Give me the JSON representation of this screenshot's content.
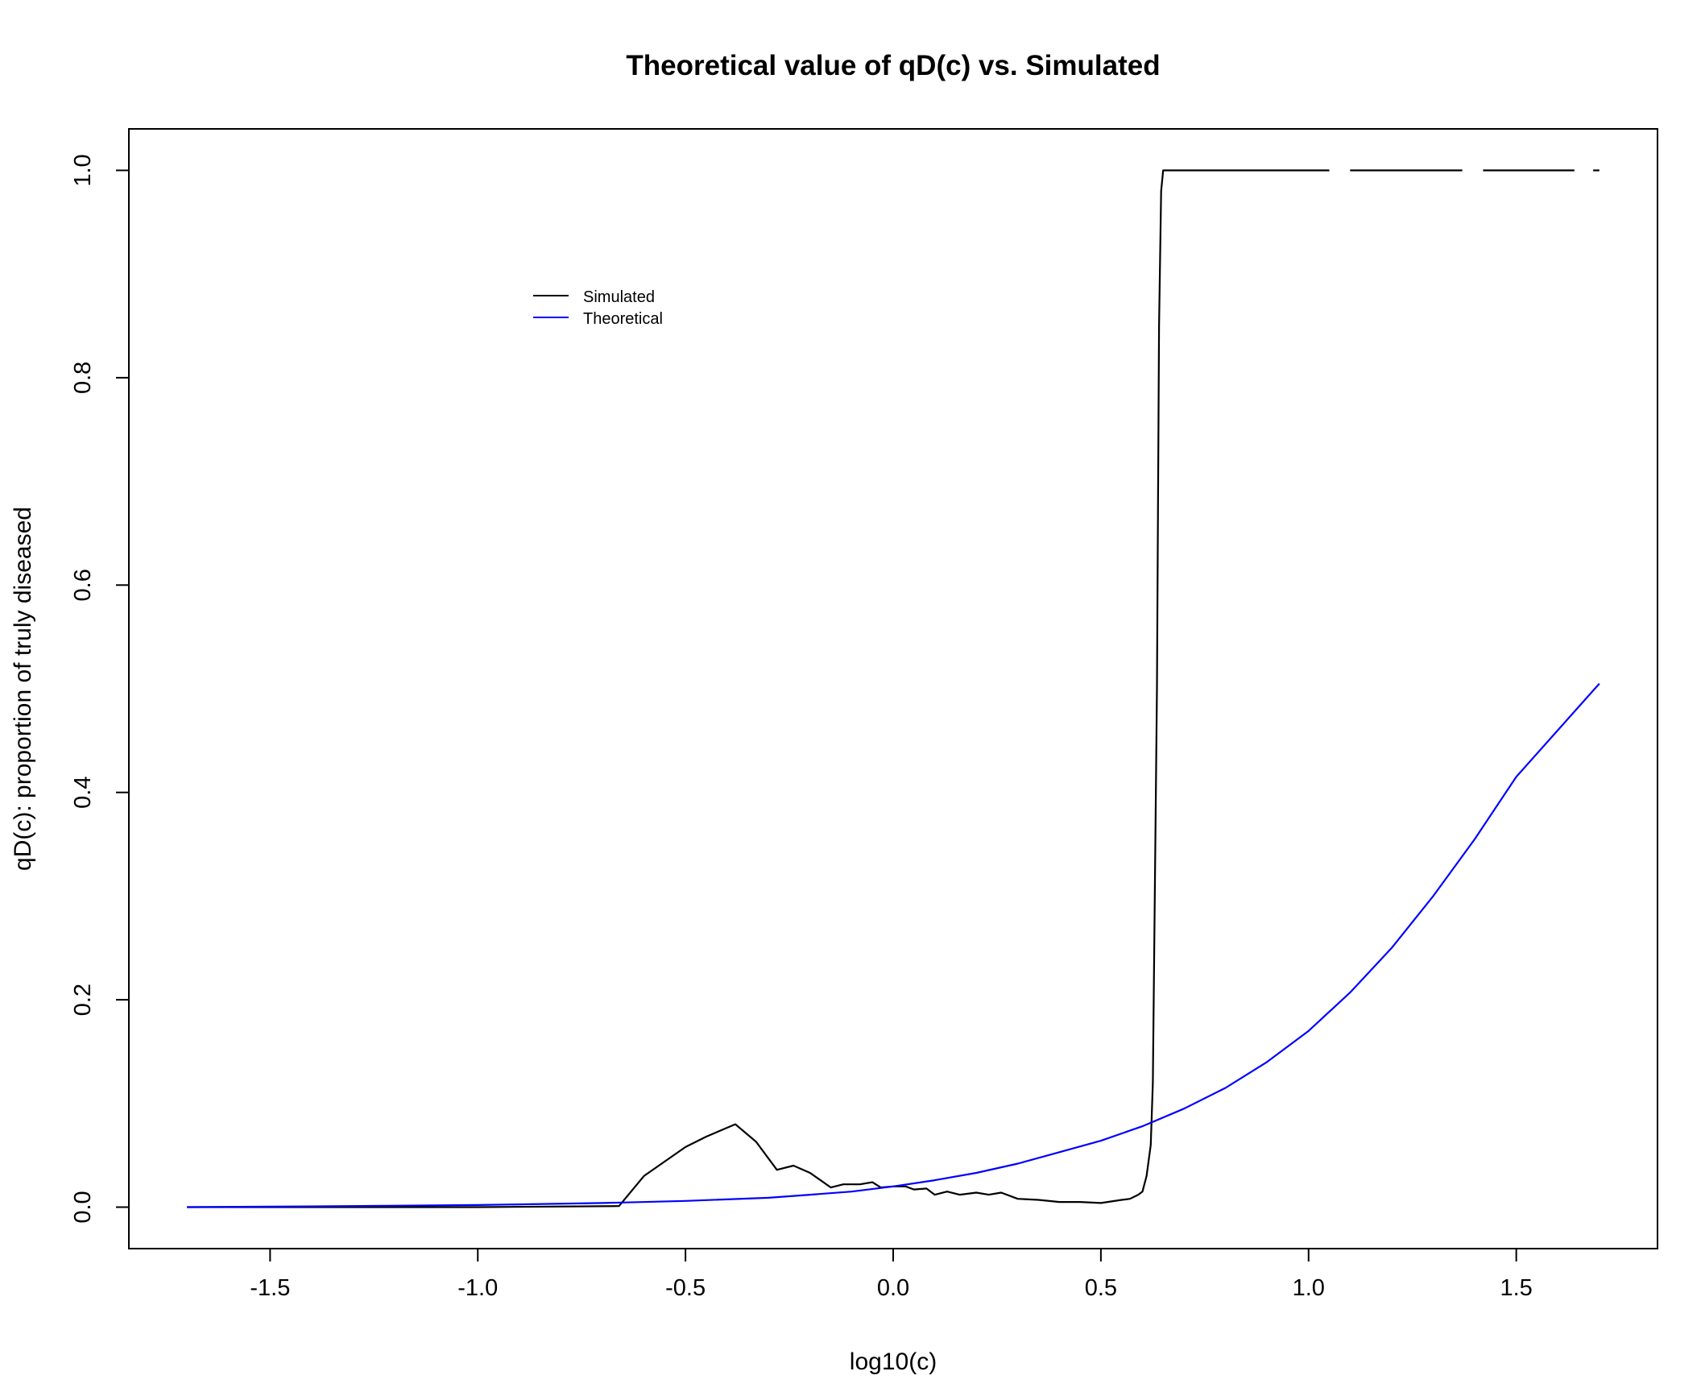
{
  "chart_data": {
    "type": "line",
    "title": "Theoretical value of qD(c) vs. Simulated",
    "xlabel": "log10(c)",
    "ylabel": "qD(c): proportion of truly diseased",
    "xlim": [
      -1.84,
      1.84
    ],
    "ylim": [
      -0.04,
      1.04
    ],
    "x_ticks": [
      -1.5,
      -1.0,
      -0.5,
      0.0,
      0.5,
      1.0,
      1.5
    ],
    "x_tick_labels": [
      "-1.5",
      "-1.0",
      "-0.5",
      "0.0",
      "0.5",
      "1.0",
      "1.5"
    ],
    "y_ticks": [
      0.0,
      0.2,
      0.4,
      0.6,
      0.8,
      1.0
    ],
    "y_tick_labels": [
      "0.0",
      "0.2",
      "0.4",
      "0.6",
      "0.8",
      "1.0"
    ],
    "grid": false,
    "legend": {
      "placement": "top-left-inside",
      "entries": [
        "Simulated",
        "Theoretical"
      ]
    },
    "series": [
      {
        "name": "Simulated",
        "color": "#000000",
        "segments": [
          {
            "x": [
              -1.7,
              -1.0,
              -0.66,
              -0.6,
              -0.5,
              -0.45,
              -0.38,
              -0.33,
              -0.28,
              -0.24,
              -0.2,
              -0.15,
              -0.12,
              -0.08,
              -0.05,
              -0.03,
              0.0,
              0.03,
              0.05,
              0.08,
              0.1,
              0.13,
              0.16,
              0.2,
              0.23,
              0.26,
              0.3,
              0.35,
              0.4,
              0.45,
              0.5,
              0.55,
              0.57,
              0.59,
              0.6,
              0.61,
              0.62,
              0.625,
              0.635,
              0.64,
              0.645,
              0.65,
              0.7,
              1.05
            ],
            "y": [
              0.0,
              0.0,
              0.001,
              0.03,
              0.058,
              0.068,
              0.08,
              0.063,
              0.036,
              0.04,
              0.033,
              0.019,
              0.022,
              0.022,
              0.024,
              0.019,
              0.02,
              0.02,
              0.017,
              0.018,
              0.012,
              0.015,
              0.012,
              0.014,
              0.012,
              0.014,
              0.008,
              0.007,
              0.005,
              0.005,
              0.004,
              0.007,
              0.008,
              0.012,
              0.015,
              0.03,
              0.06,
              0.12,
              0.5,
              0.85,
              0.98,
              1.0,
              1.0,
              1.0
            ]
          },
          {
            "x": [
              1.1,
              1.37
            ],
            "y": [
              1.0,
              1.0
            ]
          },
          {
            "x": [
              1.42,
              1.64
            ],
            "y": [
              1.0,
              1.0
            ]
          },
          {
            "x": [
              1.685,
              1.7
            ],
            "y": [
              1.0,
              1.0
            ]
          }
        ]
      },
      {
        "name": "Theoretical",
        "color": "#0000ff",
        "segments": [
          {
            "x": [
              -1.7,
              -1.5,
              -1.0,
              -0.7,
              -0.5,
              -0.3,
              -0.2,
              -0.1,
              0.0,
              0.1,
              0.2,
              0.3,
              0.4,
              0.5,
              0.6,
              0.7,
              0.8,
              0.9,
              1.0,
              1.1,
              1.2,
              1.3,
              1.4,
              1.5,
              1.6,
              1.7
            ],
            "y": [
              0.0,
              0.0005,
              0.002,
              0.004,
              0.006,
              0.009,
              0.012,
              0.015,
              0.02,
              0.026,
              0.033,
              0.042,
              0.053,
              0.064,
              0.078,
              0.095,
              0.115,
              0.14,
              0.17,
              0.207,
              0.25,
              0.3,
              0.355,
              0.415,
              0.46,
              0.505
            ]
          }
        ]
      }
    ]
  }
}
